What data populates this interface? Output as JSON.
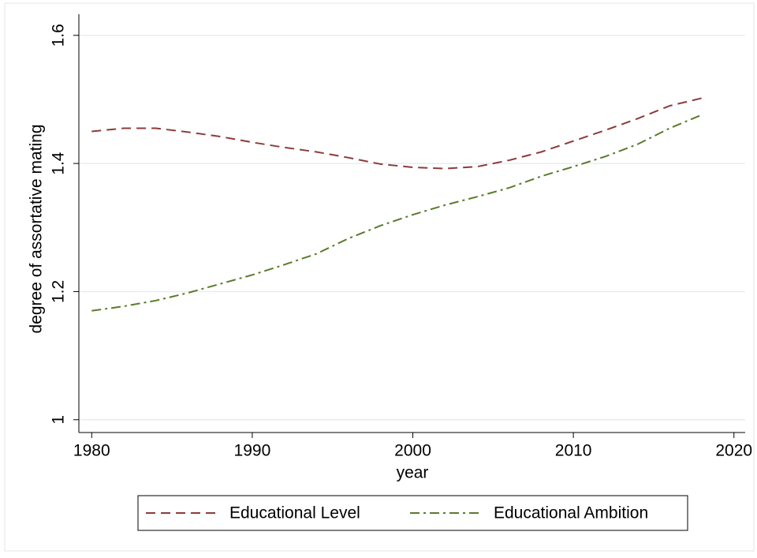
{
  "chart_data": {
    "type": "line",
    "x_label": "year",
    "y_label": "degree of assortative mating",
    "x": [
      1980,
      1982,
      1984,
      1986,
      1988,
      1990,
      1992,
      1994,
      1996,
      1998,
      2000,
      2002,
      2004,
      2006,
      2008,
      2010,
      2012,
      2014,
      2016,
      2018
    ],
    "series": [
      {
        "name": "Educational Level",
        "color": "#8c3b3b",
        "values": [
          1.45,
          1.455,
          1.455,
          1.449,
          1.442,
          1.433,
          1.425,
          1.418,
          1.409,
          1.399,
          1.394,
          1.392,
          1.395,
          1.405,
          1.418,
          1.435,
          1.452,
          1.47,
          1.49,
          1.502
        ]
      },
      {
        "name": "Educational Ambition",
        "color": "#5b7a2c",
        "values": [
          1.17,
          1.177,
          1.186,
          1.198,
          1.212,
          1.226,
          1.242,
          1.259,
          1.283,
          1.303,
          1.32,
          1.335,
          1.348,
          1.362,
          1.38,
          1.395,
          1.411,
          1.43,
          1.455,
          1.476
        ]
      }
    ],
    "xlim": [
      1979.2,
      2020.7
    ],
    "xticks": [
      1980,
      1990,
      2000,
      2010,
      2020
    ],
    "ylim": [
      0.98,
      1.633
    ],
    "yticks": [
      1,
      1.2,
      1.4,
      1.6
    ],
    "grid": true,
    "legend": "bottom"
  }
}
